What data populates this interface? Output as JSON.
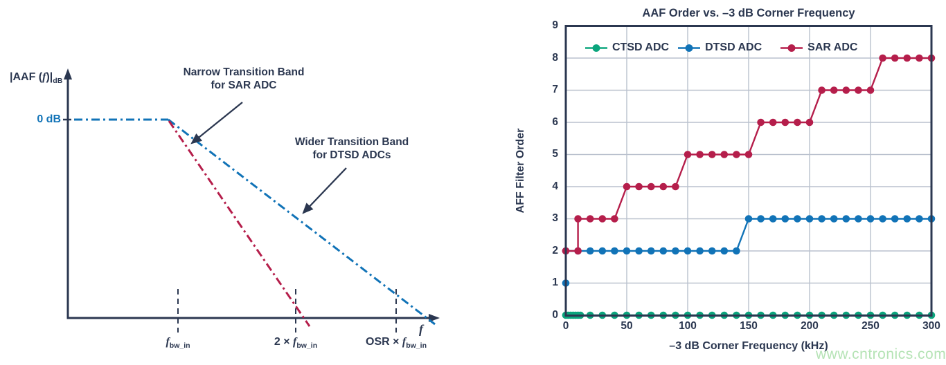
{
  "left_diagram": {
    "y_axis_label": {
      "pre": "|AAF (",
      "var": "f",
      "post": ")|",
      "sub": "dB"
    },
    "zero_db_label": "0 dB",
    "x_axis_label": "f",
    "annotation_sar": {
      "line1": "Narrow Transition Band",
      "line2": "for SAR ADC"
    },
    "annotation_dtsd": {
      "line1": "Wider Transition Band",
      "line2": "for DTSD ADCs"
    },
    "x_markers": [
      {
        "prefix": "",
        "var": "f",
        "sub": "bw_in"
      },
      {
        "prefix": "2 × ",
        "var": "f",
        "sub": "bw_in"
      },
      {
        "prefix": "OSR × ",
        "var": "f",
        "sub": "bw_in"
      }
    ]
  },
  "chart_data": {
    "type": "line",
    "title": "AAF Order vs. –3 dB Corner Frequency",
    "xlabel": "–3 dB Corner Frequency (kHz)",
    "ylabel": "AFF Filter Order",
    "xlim": [
      0,
      300
    ],
    "ylim": [
      0,
      9
    ],
    "xticks": [
      0,
      50,
      100,
      150,
      200,
      250,
      300
    ],
    "yticks": [
      0,
      1,
      2,
      3,
      4,
      5,
      6,
      7,
      8,
      9
    ],
    "grid": true,
    "legend_position": "top-left-inside",
    "series": [
      {
        "name": "CTSD ADC",
        "color": "#0ba57d",
        "points": [
          [
            0,
            0
          ],
          [
            2,
            0
          ],
          [
            4,
            0
          ],
          [
            6,
            0
          ],
          [
            8,
            0
          ],
          [
            10,
            0
          ],
          [
            12,
            0
          ],
          [
            20,
            0
          ],
          [
            30,
            0
          ],
          [
            40,
            0
          ],
          [
            50,
            0
          ],
          [
            60,
            0
          ],
          [
            70,
            0
          ],
          [
            80,
            0
          ],
          [
            90,
            0
          ],
          [
            100,
            0
          ],
          [
            110,
            0
          ],
          [
            120,
            0
          ],
          [
            130,
            0
          ],
          [
            140,
            0
          ],
          [
            150,
            0
          ],
          [
            160,
            0
          ],
          [
            170,
            0
          ],
          [
            180,
            0
          ],
          [
            190,
            0
          ],
          [
            200,
            0
          ],
          [
            210,
            0
          ],
          [
            220,
            0
          ],
          [
            230,
            0
          ],
          [
            240,
            0
          ],
          [
            250,
            0
          ],
          [
            260,
            0
          ],
          [
            270,
            0
          ],
          [
            280,
            0
          ],
          [
            290,
            0
          ],
          [
            300,
            0
          ]
        ]
      },
      {
        "name": "DTSD ADC",
        "color": "#1173b7",
        "points": [
          [
            0,
            1
          ],
          [
            0,
            2
          ],
          [
            10,
            2
          ],
          [
            20,
            2
          ],
          [
            30,
            2
          ],
          [
            40,
            2
          ],
          [
            50,
            2
          ],
          [
            60,
            2
          ],
          [
            70,
            2
          ],
          [
            80,
            2
          ],
          [
            90,
            2
          ],
          [
            100,
            2
          ],
          [
            110,
            2
          ],
          [
            120,
            2
          ],
          [
            130,
            2
          ],
          [
            140,
            2
          ],
          [
            150,
            3
          ],
          [
            160,
            3
          ],
          [
            170,
            3
          ],
          [
            180,
            3
          ],
          [
            190,
            3
          ],
          [
            200,
            3
          ],
          [
            210,
            3
          ],
          [
            220,
            3
          ],
          [
            230,
            3
          ],
          [
            240,
            3
          ],
          [
            250,
            3
          ],
          [
            260,
            3
          ],
          [
            270,
            3
          ],
          [
            280,
            3
          ],
          [
            290,
            3
          ],
          [
            300,
            3
          ]
        ]
      },
      {
        "name": "SAR ADC",
        "color": "#b51e4b",
        "points": [
          [
            0,
            2
          ],
          [
            10,
            2
          ],
          [
            10,
            3
          ],
          [
            20,
            3
          ],
          [
            30,
            3
          ],
          [
            40,
            3
          ],
          [
            50,
            4
          ],
          [
            60,
            4
          ],
          [
            70,
            4
          ],
          [
            80,
            4
          ],
          [
            90,
            4
          ],
          [
            100,
            5
          ],
          [
            110,
            5
          ],
          [
            120,
            5
          ],
          [
            130,
            5
          ],
          [
            140,
            5
          ],
          [
            150,
            5
          ],
          [
            160,
            6
          ],
          [
            170,
            6
          ],
          [
            180,
            6
          ],
          [
            190,
            6
          ],
          [
            200,
            6
          ],
          [
            210,
            7
          ],
          [
            220,
            7
          ],
          [
            230,
            7
          ],
          [
            240,
            7
          ],
          [
            250,
            7
          ],
          [
            260,
            8
          ],
          [
            270,
            8
          ],
          [
            280,
            8
          ],
          [
            290,
            8
          ],
          [
            300,
            8
          ]
        ]
      }
    ]
  },
  "watermark": "www.cntronics.com",
  "colors": {
    "navy": "#2b3750",
    "blue": "#1173b7",
    "red": "#b51e4b",
    "green": "#0ba57d",
    "grid": "#bac1ce",
    "watermark": "#b5e3b5"
  }
}
